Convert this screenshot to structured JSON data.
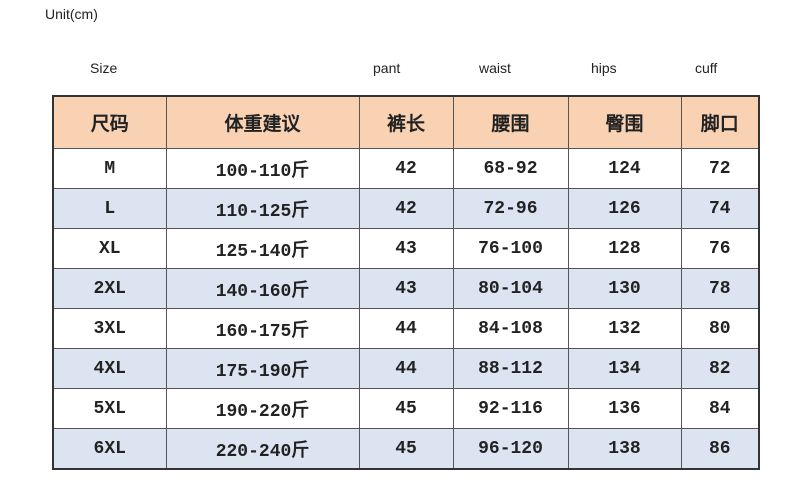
{
  "unit_label": "Unit(cm)",
  "english_headers": {
    "size": "Size",
    "pant": "pant",
    "waist": "waist",
    "hips": "hips",
    "cuff": "cuff"
  },
  "colors": {
    "header_bg": "#f9d2b4",
    "alt_row_bg": "#dbe4f0"
  },
  "table": {
    "headers": [
      "尺码",
      "体重建议",
      "裤长",
      "腰围",
      "臀围",
      "脚口"
    ],
    "rows": [
      [
        "M",
        "100-110斤",
        "42",
        "68-92",
        "124",
        "72"
      ],
      [
        "L",
        "110-125斤",
        "42",
        "72-96",
        "126",
        "74"
      ],
      [
        "XL",
        "125-140斤",
        "43",
        "76-100",
        "128",
        "76"
      ],
      [
        "2XL",
        "140-160斤",
        "43",
        "80-104",
        "130",
        "78"
      ],
      [
        "3XL",
        "160-175斤",
        "44",
        "84-108",
        "132",
        "80"
      ],
      [
        "4XL",
        "175-190斤",
        "44",
        "88-112",
        "134",
        "82"
      ],
      [
        "5XL",
        "190-220斤",
        "45",
        "92-116",
        "136",
        "84"
      ],
      [
        "6XL",
        "220-240斤",
        "45",
        "96-120",
        "138",
        "86"
      ]
    ]
  }
}
